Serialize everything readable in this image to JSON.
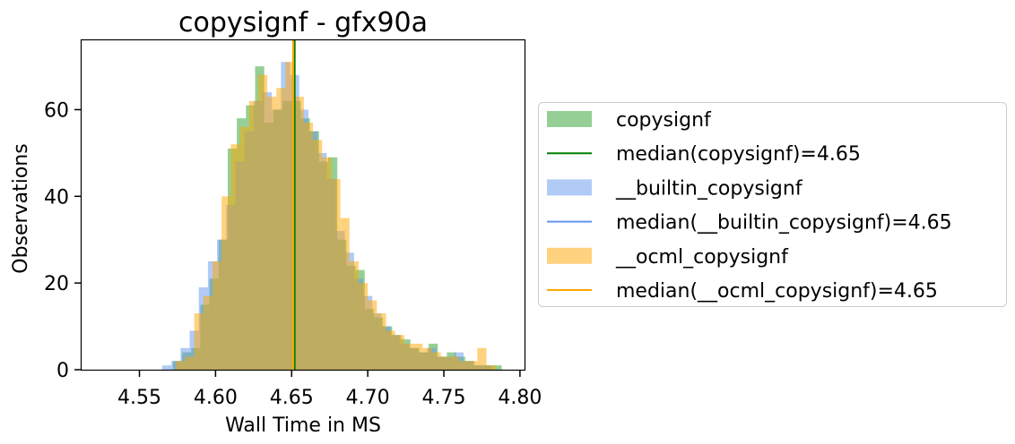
{
  "chart_data": {
    "type": "histogram",
    "title": "copysignf - gfx90a",
    "xlabel": "Wall Time in MS",
    "ylabel": "Observations",
    "xlim": [
      4.512,
      4.803
    ],
    "ylim": [
      0,
      76
    ],
    "x_ticks": [
      4.55,
      4.6,
      4.65,
      4.7,
      4.75,
      4.8
    ],
    "x_tick_labels": [
      "4.55",
      "4.60",
      "4.65",
      "4.70",
      "4.75",
      "4.80"
    ],
    "y_ticks": [
      0,
      20,
      40,
      60
    ],
    "y_tick_labels": [
      "0",
      "20",
      "40",
      "60"
    ],
    "grid": false,
    "legend_position": "outside-right",
    "series": [
      {
        "name": "copysignf",
        "color": "#2ca02c",
        "bins": [
          [
            4.572,
            4.578,
            2
          ],
          [
            4.578,
            4.584,
            4
          ],
          [
            4.584,
            4.59,
            5
          ],
          [
            4.59,
            4.596,
            15
          ],
          [
            4.596,
            4.602,
            21
          ],
          [
            4.602,
            4.608,
            30
          ],
          [
            4.608,
            4.614,
            51
          ],
          [
            4.614,
            4.62,
            58
          ],
          [
            4.62,
            4.626,
            61
          ],
          [
            4.626,
            4.632,
            70
          ],
          [
            4.632,
            4.638,
            57
          ],
          [
            4.638,
            4.644,
            60
          ],
          [
            4.644,
            4.65,
            62
          ],
          [
            4.65,
            4.656,
            62
          ],
          [
            4.656,
            4.662,
            58
          ],
          [
            4.662,
            4.668,
            55
          ],
          [
            4.668,
            4.674,
            48
          ],
          [
            4.674,
            4.68,
            49
          ],
          [
            4.68,
            4.686,
            30
          ],
          [
            4.686,
            4.692,
            24
          ],
          [
            4.692,
            4.698,
            23
          ],
          [
            4.698,
            4.704,
            14
          ],
          [
            4.704,
            4.71,
            12
          ],
          [
            4.71,
            4.716,
            10
          ],
          [
            4.716,
            4.722,
            8
          ],
          [
            4.722,
            4.728,
            7
          ],
          [
            4.728,
            4.734,
            5
          ],
          [
            4.734,
            4.74,
            4
          ],
          [
            4.74,
            4.746,
            6
          ],
          [
            4.746,
            4.752,
            3
          ],
          [
            4.752,
            4.758,
            4
          ],
          [
            4.758,
            4.764,
            3
          ],
          [
            4.764,
            4.77,
            2
          ],
          [
            4.77,
            4.776,
            1
          ],
          [
            4.776,
            4.782,
            1
          ],
          [
            4.782,
            4.788,
            1
          ]
        ]
      },
      {
        "name": "__builtin_copysignf",
        "color": "#6495ed",
        "bins": [
          [
            4.565,
            4.571,
            1
          ],
          [
            4.571,
            4.577,
            2
          ],
          [
            4.577,
            4.583,
            5
          ],
          [
            4.583,
            4.589,
            9
          ],
          [
            4.589,
            4.595,
            19
          ],
          [
            4.595,
            4.601,
            25
          ],
          [
            4.601,
            4.607,
            30
          ],
          [
            4.607,
            4.613,
            38
          ],
          [
            4.613,
            4.619,
            48
          ],
          [
            4.619,
            4.625,
            55
          ],
          [
            4.625,
            4.631,
            62
          ],
          [
            4.631,
            4.637,
            64
          ],
          [
            4.637,
            4.643,
            60
          ],
          [
            4.643,
            4.649,
            71
          ],
          [
            4.649,
            4.655,
            68
          ],
          [
            4.655,
            4.661,
            60
          ],
          [
            4.661,
            4.667,
            55
          ],
          [
            4.667,
            4.673,
            50
          ],
          [
            4.673,
            4.679,
            44
          ],
          [
            4.679,
            4.685,
            32
          ],
          [
            4.685,
            4.691,
            27
          ],
          [
            4.691,
            4.697,
            21
          ],
          [
            4.697,
            4.703,
            17
          ],
          [
            4.703,
            4.709,
            13
          ],
          [
            4.709,
            4.715,
            10
          ],
          [
            4.715,
            4.721,
            8
          ],
          [
            4.721,
            4.727,
            6
          ],
          [
            4.727,
            4.733,
            5
          ],
          [
            4.733,
            4.739,
            4
          ],
          [
            4.739,
            4.745,
            5
          ],
          [
            4.745,
            4.751,
            3
          ],
          [
            4.751,
            4.757,
            3
          ],
          [
            4.757,
            4.763,
            4
          ],
          [
            4.763,
            4.769,
            2
          ],
          [
            4.769,
            4.775,
            1
          ],
          [
            4.775,
            4.781,
            1
          ]
        ]
      },
      {
        "name": "__ocml_copysignf",
        "color": "#ffa500",
        "bins": [
          [
            4.574,
            4.58,
            2
          ],
          [
            4.58,
            4.586,
            3
          ],
          [
            4.586,
            4.592,
            13
          ],
          [
            4.592,
            4.598,
            17
          ],
          [
            4.598,
            4.604,
            25
          ],
          [
            4.604,
            4.61,
            40
          ],
          [
            4.61,
            4.616,
            52
          ],
          [
            4.616,
            4.622,
            56
          ],
          [
            4.622,
            4.628,
            62
          ],
          [
            4.628,
            4.634,
            68
          ],
          [
            4.634,
            4.64,
            63
          ],
          [
            4.64,
            4.646,
            65
          ],
          [
            4.646,
            4.652,
            71
          ],
          [
            4.652,
            4.658,
            63
          ],
          [
            4.658,
            4.664,
            57
          ],
          [
            4.664,
            4.67,
            53
          ],
          [
            4.67,
            4.676,
            49
          ],
          [
            4.676,
            4.682,
            44
          ],
          [
            4.682,
            4.688,
            35
          ],
          [
            4.688,
            4.694,
            25
          ],
          [
            4.694,
            4.7,
            20
          ],
          [
            4.7,
            4.706,
            16
          ],
          [
            4.706,
            4.712,
            13
          ],
          [
            4.712,
            4.718,
            9
          ],
          [
            4.718,
            4.724,
            8
          ],
          [
            4.724,
            4.73,
            6
          ],
          [
            4.73,
            4.736,
            6
          ],
          [
            4.736,
            4.742,
            5
          ],
          [
            4.742,
            4.748,
            4
          ],
          [
            4.748,
            4.754,
            3
          ],
          [
            4.754,
            4.76,
            3
          ],
          [
            4.76,
            4.766,
            2
          ],
          [
            4.766,
            4.772,
            2
          ],
          [
            4.772,
            4.778,
            5
          ],
          [
            4.778,
            4.784,
            1
          ]
        ]
      }
    ],
    "medians": [
      {
        "series": "copysignf",
        "value": 4.652,
        "color": "#008000"
      },
      {
        "series": "__builtin_copysignf",
        "value": 4.651,
        "color": "#6495ed"
      },
      {
        "series": "__ocml_copysignf",
        "value": 4.651,
        "color": "#ffa500"
      }
    ],
    "legend": [
      {
        "label": "copysignf",
        "kind": "patch",
        "color": "#2ca02c"
      },
      {
        "label": "median(copysignf)=4.65",
        "kind": "line",
        "color": "#008000"
      },
      {
        "label": "__builtin_copysignf",
        "kind": "patch",
        "color": "#6495ed"
      },
      {
        "label": "median(__builtin_copysignf)=4.65",
        "kind": "line",
        "color": "#6495ed"
      },
      {
        "label": "__ocml_copysignf",
        "kind": "patch",
        "color": "#ffa500"
      },
      {
        "label": "median(__ocml_copysignf)=4.65",
        "kind": "line",
        "color": "#ffa500"
      }
    ]
  }
}
